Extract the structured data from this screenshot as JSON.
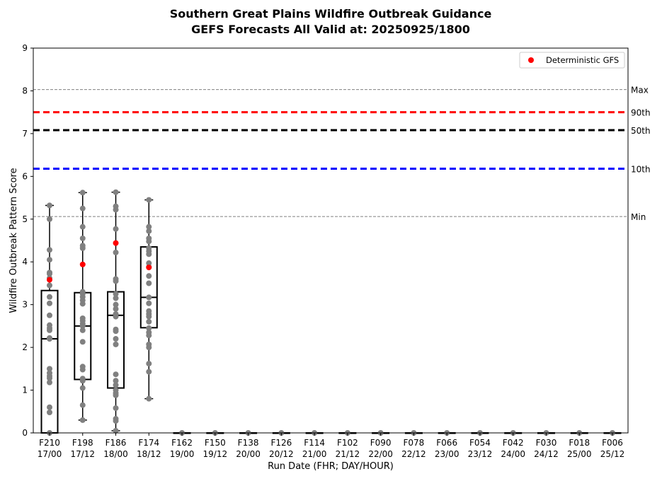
{
  "chart_data": {
    "type": "box",
    "title": "Southern Great Plains Wildfire Outbreak Guidance",
    "subtitle": "GEFS Forecasts All Valid at: 20250925/1800",
    "xlabel": "Run Date (FHR; DAY/HOUR)",
    "ylabel": "Wildfire Outbreak Pattern Score",
    "ylim": [
      0,
      9
    ],
    "yticks": [
      0,
      1,
      2,
      3,
      4,
      5,
      6,
      7,
      8,
      9
    ],
    "grid": false,
    "legend_position": "top-right",
    "legend": [
      {
        "label": "Deterministic GFS",
        "color": "#ff0000"
      }
    ],
    "categories": [
      {
        "fhr": "F210",
        "date": "17/00"
      },
      {
        "fhr": "F198",
        "date": "17/12"
      },
      {
        "fhr": "F186",
        "date": "18/00"
      },
      {
        "fhr": "F174",
        "date": "18/12"
      },
      {
        "fhr": "F162",
        "date": "19/00"
      },
      {
        "fhr": "F150",
        "date": "19/12"
      },
      {
        "fhr": "F138",
        "date": "20/00"
      },
      {
        "fhr": "F126",
        "date": "20/12"
      },
      {
        "fhr": "F114",
        "date": "21/00"
      },
      {
        "fhr": "F102",
        "date": "21/12"
      },
      {
        "fhr": "F090",
        "date": "22/00"
      },
      {
        "fhr": "F078",
        "date": "22/12"
      },
      {
        "fhr": "F066",
        "date": "23/00"
      },
      {
        "fhr": "F054",
        "date": "23/12"
      },
      {
        "fhr": "F042",
        "date": "24/00"
      },
      {
        "fhr": "F030",
        "date": "24/12"
      },
      {
        "fhr": "F018",
        "date": "25/00"
      },
      {
        "fhr": "F006",
        "date": "25/12"
      }
    ],
    "reference_lines": [
      {
        "label": "Max",
        "value": 8.03,
        "color": "#808080",
        "style": "thin-dashed"
      },
      {
        "label": "90th",
        "value": 7.5,
        "color": "#ff0000",
        "style": "thick-dashed"
      },
      {
        "label": "50th",
        "value": 7.08,
        "color": "#000000",
        "style": "thick-dashed"
      },
      {
        "label": "10th",
        "value": 6.18,
        "color": "#0000ff",
        "style": "thick-dashed"
      },
      {
        "label": "Min",
        "value": 5.06,
        "color": "#808080",
        "style": "thin-dashed"
      }
    ],
    "boxes": [
      {
        "q1": 0.0,
        "median": 2.2,
        "q3": 3.33,
        "whisker_low": 0.0,
        "whisker_high": 5.32
      },
      {
        "q1": 1.25,
        "median": 2.5,
        "q3": 3.28,
        "whisker_low": 0.3,
        "whisker_high": 5.62
      },
      {
        "q1": 1.05,
        "median": 2.75,
        "q3": 3.3,
        "whisker_low": 0.05,
        "whisker_high": 5.63
      },
      {
        "q1": 2.46,
        "median": 3.17,
        "q3": 4.35,
        "whisker_low": 0.8,
        "whisker_high": 5.45
      },
      {
        "q1": 0,
        "median": 0,
        "q3": 0,
        "whisker_low": 0,
        "whisker_high": 0
      },
      {
        "q1": 0,
        "median": 0,
        "q3": 0,
        "whisker_low": 0,
        "whisker_high": 0
      },
      {
        "q1": 0,
        "median": 0,
        "q3": 0,
        "whisker_low": 0,
        "whisker_high": 0
      },
      {
        "q1": 0,
        "median": 0,
        "q3": 0,
        "whisker_low": 0,
        "whisker_high": 0
      },
      {
        "q1": 0,
        "median": 0,
        "q3": 0,
        "whisker_low": 0,
        "whisker_high": 0
      },
      {
        "q1": 0,
        "median": 0,
        "q3": 0,
        "whisker_low": 0,
        "whisker_high": 0
      },
      {
        "q1": 0,
        "median": 0,
        "q3": 0,
        "whisker_low": 0,
        "whisker_high": 0
      },
      {
        "q1": 0,
        "median": 0,
        "q3": 0,
        "whisker_low": 0,
        "whisker_high": 0
      },
      {
        "q1": 0,
        "median": 0,
        "q3": 0,
        "whisker_low": 0,
        "whisker_high": 0
      },
      {
        "q1": 0,
        "median": 0,
        "q3": 0,
        "whisker_low": 0,
        "whisker_high": 0
      },
      {
        "q1": 0,
        "median": 0,
        "q3": 0,
        "whisker_low": 0,
        "whisker_high": 0
      },
      {
        "q1": 0,
        "median": 0,
        "q3": 0,
        "whisker_low": 0,
        "whisker_high": 0
      },
      {
        "q1": 0,
        "median": 0,
        "q3": 0,
        "whisker_low": 0,
        "whisker_high": 0
      },
      {
        "q1": 0,
        "median": 0,
        "q3": 0,
        "whisker_low": 0,
        "whisker_high": 0
      }
    ],
    "members": [
      [
        5.32,
        5.0,
        4.28,
        4.05,
        3.75,
        3.72,
        3.62,
        3.45,
        3.18,
        3.03,
        2.75,
        2.52,
        2.45,
        2.4,
        2.22,
        2.2,
        1.5,
        1.4,
        1.33,
        1.28,
        1.18,
        0.6,
        0.48,
        0.0
      ],
      [
        5.62,
        5.25,
        4.82,
        4.55,
        4.38,
        4.32,
        3.3,
        3.25,
        3.18,
        3.1,
        3.02,
        2.68,
        2.62,
        2.55,
        2.5,
        2.4,
        2.13,
        1.55,
        1.48,
        1.27,
        1.22,
        1.05,
        0.65,
        0.3
      ],
      [
        5.63,
        5.3,
        5.22,
        4.77,
        4.22,
        3.6,
        3.55,
        3.25,
        3.15,
        3.0,
        2.9,
        2.78,
        2.72,
        2.42,
        2.38,
        2.2,
        2.07,
        1.37,
        1.22,
        1.12,
        1.0,
        0.93,
        0.88,
        0.58,
        0.33,
        0.28,
        0.05
      ],
      [
        5.45,
        4.82,
        4.72,
        4.55,
        4.48,
        4.32,
        4.25,
        4.18,
        3.97,
        3.88,
        3.67,
        3.5,
        3.17,
        3.03,
        2.85,
        2.78,
        2.72,
        2.6,
        2.45,
        2.35,
        2.28,
        2.07,
        2.0,
        1.62,
        1.43,
        0.8
      ],
      [
        0
      ],
      [
        0
      ],
      [
        0
      ],
      [
        0
      ],
      [
        0
      ],
      [
        0
      ],
      [
        0
      ],
      [
        0
      ],
      [
        0
      ],
      [
        0
      ],
      [
        0
      ],
      [
        0
      ],
      [
        0
      ],
      [
        0
      ]
    ],
    "deterministic_gfs": [
      3.58,
      3.94,
      4.44,
      3.87,
      null,
      null,
      null,
      null,
      null,
      null,
      null,
      null,
      null,
      null,
      null,
      null,
      null,
      null
    ]
  }
}
